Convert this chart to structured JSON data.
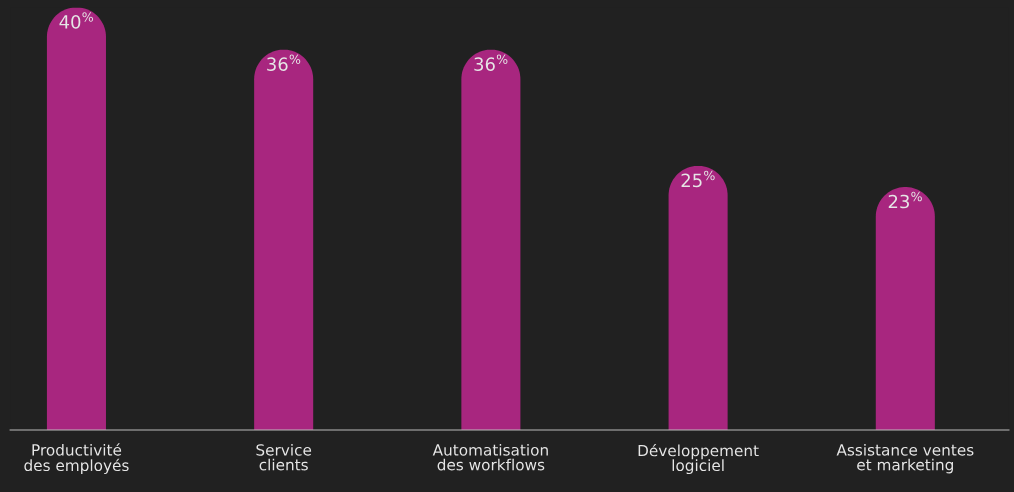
{
  "chart_data": {
    "type": "bar",
    "categories": [
      "Productivité\ndes employés",
      "Service\nclients",
      "Automatisation\ndes workflows",
      "Développement\nlogiciel",
      "Assistance ventes\net marketing"
    ],
    "values": [
      40,
      36,
      36,
      25,
      23
    ],
    "value_labels": [
      "40$^{%}$",
      "36$^{%}$",
      "36$^{%}$",
      "25$^{%}$",
      "23$^{%}$"
    ],
    "color": "#a8267f",
    "grid": false
  }
}
